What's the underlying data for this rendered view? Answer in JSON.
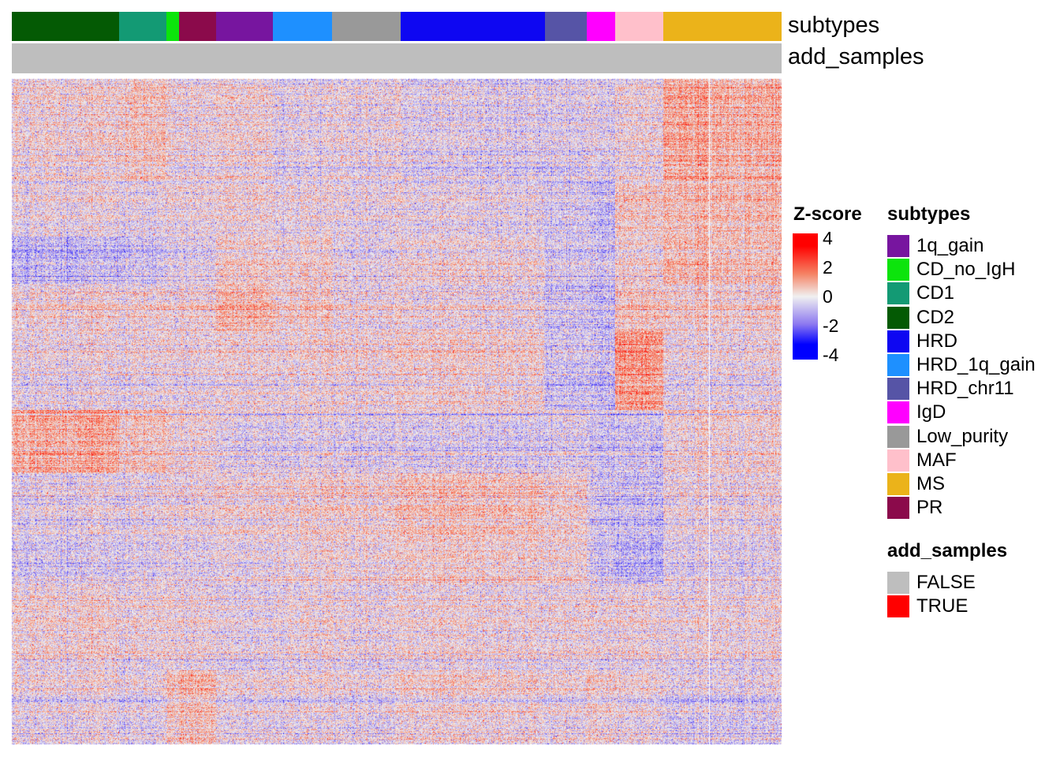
{
  "chart_data": {
    "type": "heatmap",
    "colorbar": {
      "title": "Z-score",
      "ticks": [
        4,
        2,
        0,
        -2,
        -4
      ],
      "range": [
        -4,
        4
      ],
      "colors": {
        "-4": "#0000FF",
        "-2": "#8C78F0",
        "0": "#F0F0F0",
        "2": "#F58264",
        "4": "#FF0000"
      }
    },
    "annotation_rows": [
      {
        "name": "subtypes",
        "groups": [
          "CD2",
          "CD1",
          "CD_no_IgH",
          "PR",
          "1q_gain",
          "HRD_1q_gain",
          "Low_purity",
          "HRD",
          "HRD_chr11",
          "IgD",
          "MAF",
          "MS",
          "MS"
        ]
      },
      {
        "name": "add_samples",
        "groups": [
          "FALSE",
          "FALSE",
          "FALSE",
          "FALSE",
          "FALSE",
          "FALSE",
          "FALSE",
          "FALSE",
          "FALSE",
          "FALSE",
          "FALSE",
          "FALSE",
          "FALSE"
        ]
      }
    ],
    "column_split": [
      "main",
      "main",
      "main",
      "main",
      "main",
      "main",
      "main",
      "main",
      "main",
      "main",
      "main",
      "main",
      "second"
    ],
    "approx_block_means": [
      [
        0.2,
        0.5,
        0,
        0,
        0.2,
        -0.2,
        0,
        -0.4,
        -0.4,
        -0.3,
        0,
        1.2,
        1.0
      ],
      [
        0,
        -0.2,
        0,
        0,
        0.2,
        0,
        0,
        -0.2,
        -0.5,
        -0.8,
        0.5,
        0.8,
        0.8
      ],
      [
        -0.8,
        -0.6,
        -0.3,
        -0.2,
        0.5,
        0.4,
        0,
        0.2,
        -0.4,
        -0.5,
        0.3,
        1.0,
        0.8
      ],
      [
        0.3,
        0.2,
        0,
        0.3,
        1.0,
        0.5,
        0.2,
        0,
        -0.6,
        -0.8,
        0.6,
        0.5,
        0.4
      ],
      [
        0,
        0,
        0,
        0,
        0.2,
        0.2,
        0.3,
        0.3,
        -0.6,
        -0.7,
        1.5,
        0,
        0
      ],
      [
        1.2,
        0.6,
        0.2,
        0.2,
        -0.2,
        -0.2,
        -0.2,
        -0.4,
        -0.3,
        -0.6,
        -0.6,
        0.3,
        0.3
      ],
      [
        -0.2,
        -0.2,
        0,
        0,
        0.2,
        0.3,
        0.4,
        0.6,
        0.3,
        -0.6,
        -0.8,
        0,
        0
      ],
      [
        -0.4,
        -0.3,
        -0.2,
        -0.2,
        0,
        0.2,
        0.3,
        0.4,
        0.3,
        -0.5,
        -1.0,
        -0.2,
        -0.2
      ],
      [
        0.2,
        0,
        0,
        0,
        -0.2,
        0,
        0,
        0,
        0,
        0,
        0,
        0,
        0
      ],
      [
        0,
        -0.2,
        0.5,
        0.8,
        0,
        0,
        0,
        0.2,
        0,
        0.3,
        0,
        -0.3,
        -0.3
      ]
    ]
  },
  "annotations": {
    "subtypes_label": "subtypes",
    "add_samples_label": "add_samples"
  },
  "legend": {
    "zscore_title": "Z-score",
    "zscore_ticks": [
      "4",
      "2",
      "0",
      "-2",
      "-4"
    ],
    "subtypes_title": "subtypes",
    "subtypes": [
      {
        "label": "1q_gain",
        "color": "#77159F"
      },
      {
        "label": "CD_no_IgH",
        "color": "#0CE40C"
      },
      {
        "label": "CD1",
        "color": "#139A74"
      },
      {
        "label": "CD2",
        "color": "#045A04"
      },
      {
        "label": "HRD",
        "color": "#0E07F2"
      },
      {
        "label": "HRD_1q_gain",
        "color": "#1E90FF"
      },
      {
        "label": "HRD_chr11",
        "color": "#5654A6"
      },
      {
        "label": "IgD",
        "color": "#FF00FF"
      },
      {
        "label": "Low_purity",
        "color": "#999999"
      },
      {
        "label": "MAF",
        "color": "#FFC0CB"
      },
      {
        "label": "MS",
        "color": "#EBB31A"
      },
      {
        "label": "PR",
        "color": "#8B0A4B"
      }
    ],
    "add_samples_title": "add_samples",
    "add_samples": [
      {
        "label": "FALSE",
        "color": "#BEBEBE"
      },
      {
        "label": "TRUE",
        "color": "#FF0000"
      }
    ]
  }
}
